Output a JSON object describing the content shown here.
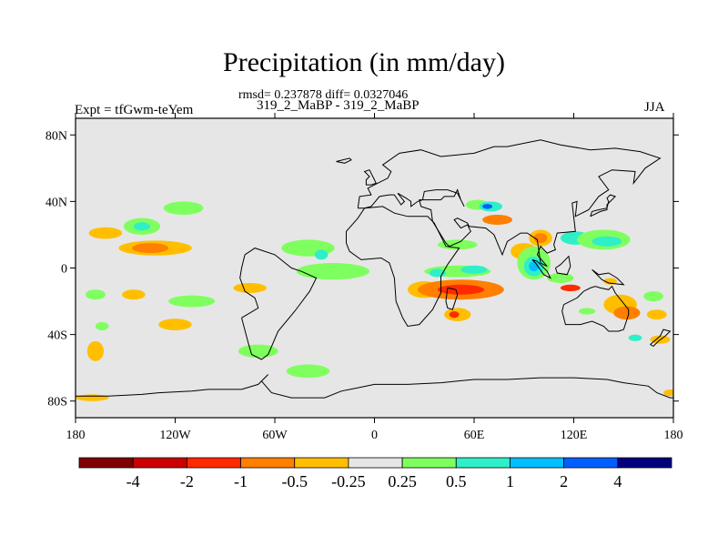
{
  "title": "Precipitation (in mm/day)",
  "stats_line": "rmsd= 0.237878 diff= 0.0327046",
  "subtitle": "319_2_MaBP - 319_2_MaBP",
  "experiment_label": "Expt = tfGwm-teYem",
  "season_label": "JJA",
  "map": {
    "projection": "cylindrical equidistant",
    "lon_range": [
      -180,
      180
    ],
    "lat_range": [
      -90,
      90
    ],
    "background_color": "#e6e6e6",
    "lat_ticks": [
      {
        "value": 80,
        "label": "80N"
      },
      {
        "value": 40,
        "label": "40N"
      },
      {
        "value": 0,
        "label": "0"
      },
      {
        "value": -40,
        "label": "40S"
      },
      {
        "value": -80,
        "label": "80S"
      }
    ],
    "lon_ticks": [
      {
        "value": -180,
        "label": "180"
      },
      {
        "value": -120,
        "label": "120W"
      },
      {
        "value": -60,
        "label": "60W"
      },
      {
        "value": 0,
        "label": "0"
      },
      {
        "value": 60,
        "label": "60E"
      },
      {
        "value": 120,
        "label": "120E"
      },
      {
        "value": 180,
        "label": "180"
      }
    ]
  },
  "colorbar": {
    "colors": [
      "#7f0000",
      "#cc0000",
      "#ff2a00",
      "#ff7f00",
      "#ffbf00",
      "#e6e6e6",
      "#7fff5f",
      "#2fefc8",
      "#00bfff",
      "#005fff",
      "#00007f"
    ],
    "labels": [
      "-4",
      "-2",
      "-1",
      "-0.5",
      "-0.25",
      "0.25",
      "0.5",
      "1",
      "2",
      "4"
    ]
  },
  "anomaly_patches": [
    {
      "lon": -162,
      "lat": 21,
      "rx": 10,
      "ry": 3.5,
      "color": "#ffbf00"
    },
    {
      "lon": -140,
      "lat": 25,
      "rx": 11,
      "ry": 5,
      "color": "#7fff5f"
    },
    {
      "lon": -140,
      "lat": 25,
      "rx": 5,
      "ry": 2.5,
      "color": "#2fefc8"
    },
    {
      "lon": -132,
      "lat": 12,
      "rx": 22,
      "ry": 4.5,
      "color": "#ffbf00"
    },
    {
      "lon": -135,
      "lat": 12,
      "rx": 11,
      "ry": 3,
      "color": "#ff7f00"
    },
    {
      "lon": -115,
      "lat": 36,
      "rx": 12,
      "ry": 4,
      "color": "#7fff5f"
    },
    {
      "lon": -168,
      "lat": -16,
      "rx": 6,
      "ry": 3,
      "color": "#7fff5f"
    },
    {
      "lon": -145,
      "lat": -16,
      "rx": 7,
      "ry": 3,
      "color": "#ffbf00"
    },
    {
      "lon": -110,
      "lat": -20,
      "rx": 14,
      "ry": 3.5,
      "color": "#7fff5f"
    },
    {
      "lon": -75,
      "lat": -12,
      "rx": 10,
      "ry": 3,
      "color": "#ffbf00"
    },
    {
      "lon": -120,
      "lat": -34,
      "rx": 10,
      "ry": 3.5,
      "color": "#ffbf00"
    },
    {
      "lon": -168,
      "lat": -50,
      "rx": 5,
      "ry": 6,
      "color": "#ffbf00"
    },
    {
      "lon": -164,
      "lat": -35,
      "rx": 4,
      "ry": 2.5,
      "color": "#7fff5f"
    },
    {
      "lon": -70,
      "lat": -50,
      "rx": 12,
      "ry": 4,
      "color": "#7fff5f"
    },
    {
      "lon": -40,
      "lat": -62,
      "rx": 13,
      "ry": 4,
      "color": "#7fff5f"
    },
    {
      "lon": -170,
      "lat": -78,
      "rx": 10,
      "ry": 2,
      "color": "#ffbf00"
    },
    {
      "lon": -40,
      "lat": 12,
      "rx": 16,
      "ry": 5,
      "color": "#7fff5f"
    },
    {
      "lon": -32,
      "lat": 8,
      "rx": 4,
      "ry": 3,
      "color": "#2fefc8"
    },
    {
      "lon": -25,
      "lat": -2,
      "rx": 22,
      "ry": 5,
      "color": "#7fff5f"
    },
    {
      "lon": 30,
      "lat": -13,
      "rx": 10,
      "ry": 5,
      "color": "#ffbf00"
    },
    {
      "lon": 52,
      "lat": -13,
      "rx": 26,
      "ry": 6,
      "color": "#ff7f00"
    },
    {
      "lon": 52,
      "lat": -13,
      "rx": 14,
      "ry": 3,
      "color": "#ff2a00"
    },
    {
      "lon": 50,
      "lat": -2,
      "rx": 20,
      "ry": 3.5,
      "color": "#7fff5f"
    },
    {
      "lon": 38,
      "lat": -3,
      "rx": 5,
      "ry": 2.5,
      "color": "#2fefc8"
    },
    {
      "lon": 60,
      "lat": -1,
      "rx": 8,
      "ry": 2.5,
      "color": "#2fefc8"
    },
    {
      "lon": 50,
      "lat": -28,
      "rx": 8,
      "ry": 4,
      "color": "#ffbf00"
    },
    {
      "lon": 48,
      "lat": -28,
      "rx": 3,
      "ry": 2,
      "color": "#ff2a00"
    },
    {
      "lon": 62,
      "lat": 38,
      "rx": 7,
      "ry": 3,
      "color": "#7fff5f"
    },
    {
      "lon": 70,
      "lat": 37,
      "rx": 7,
      "ry": 3,
      "color": "#2fefc8"
    },
    {
      "lon": 68,
      "lat": 37,
      "rx": 3,
      "ry": 1.5,
      "color": "#005fff"
    },
    {
      "lon": 74,
      "lat": 29,
      "rx": 9,
      "ry": 3,
      "color": "#ff7f00"
    },
    {
      "lon": 50,
      "lat": 14,
      "rx": 12,
      "ry": 3,
      "color": "#7fff5f"
    },
    {
      "lon": 100,
      "lat": 18,
      "rx": 7,
      "ry": 5,
      "color": "#ffbf00"
    },
    {
      "lon": 100,
      "lat": 18,
      "rx": 4,
      "ry": 3,
      "color": "#ff7f00"
    },
    {
      "lon": 90,
      "lat": 10,
      "rx": 8,
      "ry": 5,
      "color": "#ffbf00"
    },
    {
      "lon": 96,
      "lat": 3,
      "rx": 10,
      "ry": 10,
      "color": "#7fff5f"
    },
    {
      "lon": 96,
      "lat": 1,
      "rx": 6,
      "ry": 6,
      "color": "#2fefc8"
    },
    {
      "lon": 96,
      "lat": 1,
      "rx": 3,
      "ry": 3,
      "color": "#00bfff"
    },
    {
      "lon": 121,
      "lat": 18,
      "rx": 9,
      "ry": 4,
      "color": "#2fefc8"
    },
    {
      "lon": 138,
      "lat": 17,
      "rx": 16,
      "ry": 6,
      "color": "#7fff5f"
    },
    {
      "lon": 140,
      "lat": 16,
      "rx": 9,
      "ry": 3,
      "color": "#2fefc8"
    },
    {
      "lon": 118,
      "lat": -12,
      "rx": 6,
      "ry": 2,
      "color": "#ff2a00"
    },
    {
      "lon": 112,
      "lat": -6,
      "rx": 8,
      "ry": 3,
      "color": "#7fff5f"
    },
    {
      "lon": 142,
      "lat": -8,
      "rx": 4,
      "ry": 2,
      "color": "#ffbf00"
    },
    {
      "lon": 148,
      "lat": -22,
      "rx": 10,
      "ry": 6,
      "color": "#ffbf00"
    },
    {
      "lon": 152,
      "lat": -27,
      "rx": 8,
      "ry": 4,
      "color": "#ff7f00"
    },
    {
      "lon": 170,
      "lat": -28,
      "rx": 6,
      "ry": 3,
      "color": "#ffbf00"
    },
    {
      "lon": 168,
      "lat": -17,
      "rx": 6,
      "ry": 3,
      "color": "#7fff5f"
    },
    {
      "lon": 172,
      "lat": -43,
      "rx": 6,
      "ry": 2.5,
      "color": "#ffbf00"
    },
    {
      "lon": 157,
      "lat": -42,
      "rx": 4,
      "ry": 2,
      "color": "#2fefc8"
    },
    {
      "lon": 128,
      "lat": -26,
      "rx": 5,
      "ry": 2,
      "color": "#7fff5f"
    },
    {
      "lon": 178,
      "lat": -75,
      "rx": 4,
      "ry": 2,
      "color": "#ffbf00"
    }
  ],
  "coastlines": [
    [
      [
        -180,
        -77
      ],
      [
        -160,
        -77
      ],
      [
        -140,
        -76
      ],
      [
        -130,
        -75
      ],
      [
        -110,
        -74
      ],
      [
        -100,
        -73
      ],
      [
        -80,
        -73
      ],
      [
        -70,
        -70
      ],
      [
        -64,
        -64
      ],
      [
        -68,
        -68
      ],
      [
        -62,
        -75
      ],
      [
        -50,
        -78
      ],
      [
        -30,
        -78
      ],
      [
        -20,
        -74
      ],
      [
        -10,
        -72
      ],
      [
        0,
        -70
      ],
      [
        20,
        -70
      ],
      [
        40,
        -69
      ],
      [
        60,
        -67
      ],
      [
        80,
        -67
      ],
      [
        100,
        -66
      ],
      [
        120,
        -66
      ],
      [
        140,
        -67
      ],
      [
        150,
        -69
      ],
      [
        165,
        -71
      ],
      [
        170,
        -75
      ],
      [
        178,
        -78
      ],
      [
        180,
        -78
      ]
    ],
    [
      [
        -80,
        -30
      ],
      [
        -76,
        -45
      ],
      [
        -74,
        -52
      ],
      [
        -68,
        -55
      ],
      [
        -64,
        -52
      ],
      [
        -58,
        -38
      ],
      [
        -48,
        -26
      ],
      [
        -39,
        -14
      ],
      [
        -35,
        -6
      ],
      [
        -44,
        -2
      ],
      [
        -50,
        0
      ],
      [
        -60,
        8
      ],
      [
        -72,
        12
      ],
      [
        -78,
        8
      ],
      [
        -80,
        0
      ],
      [
        -81,
        -6
      ],
      [
        -78,
        -14
      ],
      [
        -72,
        -18
      ],
      [
        -70,
        -24
      ],
      [
        -80,
        -30
      ]
    ],
    [
      [
        -17,
        15
      ],
      [
        -17,
        22
      ],
      [
        -10,
        30
      ],
      [
        -6,
        36
      ],
      [
        5,
        37
      ],
      [
        12,
        33
      ],
      [
        20,
        31
      ],
      [
        32,
        31
      ],
      [
        36,
        27
      ],
      [
        43,
        13
      ],
      [
        51,
        12
      ],
      [
        44,
        2
      ],
      [
        40,
        -5
      ],
      [
        40,
        -15
      ],
      [
        35,
        -25
      ],
      [
        27,
        -34
      ],
      [
        20,
        -35
      ],
      [
        17,
        -30
      ],
      [
        13,
        -20
      ],
      [
        12,
        -6
      ],
      [
        9,
        3
      ],
      [
        4,
        6
      ],
      [
        -8,
        5
      ],
      [
        -15,
        10
      ],
      [
        -17,
        15
      ]
    ],
    [
      [
        -10,
        36
      ],
      [
        -9,
        43
      ],
      [
        -2,
        44
      ],
      [
        -4,
        48
      ],
      [
        2,
        51
      ],
      [
        8,
        54
      ],
      [
        10,
        58
      ],
      [
        5,
        62
      ],
      [
        15,
        69
      ],
      [
        28,
        71
      ],
      [
        40,
        67
      ],
      [
        60,
        69
      ],
      [
        72,
        73
      ],
      [
        80,
        73
      ],
      [
        100,
        77
      ],
      [
        112,
        74
      ],
      [
        130,
        71
      ],
      [
        145,
        72
      ],
      [
        160,
        70
      ],
      [
        172,
        66
      ],
      [
        163,
        60
      ],
      [
        156,
        51
      ],
      [
        157,
        58
      ],
      [
        143,
        59
      ],
      [
        135,
        55
      ],
      [
        141,
        47
      ],
      [
        135,
        43
      ],
      [
        129,
        35
      ],
      [
        121,
        31
      ],
      [
        122,
        40
      ],
      [
        119,
        39
      ],
      [
        121,
        22
      ],
      [
        110,
        21
      ],
      [
        108,
        14
      ],
      [
        109,
        11
      ],
      [
        104,
        9
      ],
      [
        100,
        13
      ],
      [
        98,
        8
      ],
      [
        104,
        1
      ],
      [
        100,
        3
      ],
      [
        98,
        17
      ],
      [
        92,
        21
      ],
      [
        88,
        21
      ],
      [
        80,
        16
      ],
      [
        77,
        8
      ],
      [
        72,
        20
      ],
      [
        67,
        24
      ],
      [
        57,
        25
      ],
      [
        56,
        27
      ],
      [
        50,
        30
      ],
      [
        48,
        29
      ],
      [
        52,
        24
      ],
      [
        56,
        26
      ],
      [
        58,
        22
      ],
      [
        52,
        16
      ],
      [
        45,
        13
      ],
      [
        43,
        15
      ],
      [
        35,
        28
      ],
      [
        34,
        35
      ],
      [
        28,
        37
      ],
      [
        27,
        41
      ],
      [
        29,
        41
      ],
      [
        40,
        41
      ],
      [
        42,
        43
      ],
      [
        48,
        43
      ],
      [
        50,
        47
      ],
      [
        52,
        41
      ],
      [
        54,
        37
      ],
      [
        50,
        45
      ],
      [
        44,
        47
      ],
      [
        37,
        47
      ],
      [
        30,
        46
      ],
      [
        29,
        41
      ],
      [
        26,
        40
      ],
      [
        22,
        37
      ],
      [
        22,
        40
      ],
      [
        19,
        42
      ],
      [
        14,
        45
      ],
      [
        18,
        40
      ],
      [
        16,
        38
      ],
      [
        12,
        44
      ],
      [
        9,
        44
      ],
      [
        3,
        43
      ],
      [
        -2,
        37
      ],
      [
        -6,
        36
      ],
      [
        -10,
        36
      ]
    ],
    [
      [
        114,
        -22
      ],
      [
        113,
        -26
      ],
      [
        115,
        -34
      ],
      [
        124,
        -34
      ],
      [
        131,
        -32
      ],
      [
        138,
        -35
      ],
      [
        141,
        -38
      ],
      [
        147,
        -38
      ],
      [
        150,
        -37
      ],
      [
        153,
        -28
      ],
      [
        153,
        -25
      ],
      [
        145,
        -15
      ],
      [
        143,
        -11
      ],
      [
        141,
        -13
      ],
      [
        136,
        -12
      ],
      [
        133,
        -11
      ],
      [
        130,
        -12
      ],
      [
        126,
        -14
      ],
      [
        122,
        -18
      ],
      [
        114,
        -22
      ]
    ],
    [
      [
        95,
        5
      ],
      [
        98,
        4
      ],
      [
        104,
        -2
      ],
      [
        106,
        -6
      ],
      [
        102,
        -4
      ],
      [
        97,
        3
      ],
      [
        95,
        5
      ]
    ],
    [
      [
        109,
        0
      ],
      [
        110,
        -3
      ],
      [
        116,
        -4
      ],
      [
        118,
        1
      ],
      [
        117,
        7
      ],
      [
        112,
        2
      ],
      [
        109,
        0
      ]
    ],
    [
      [
        131,
        -1
      ],
      [
        135,
        -4
      ],
      [
        141,
        -3
      ],
      [
        146,
        -6
      ],
      [
        150,
        -10
      ],
      [
        141,
        -9
      ],
      [
        137,
        -7
      ],
      [
        132,
        -2
      ],
      [
        131,
        -1
      ]
    ],
    [
      [
        130,
        31
      ],
      [
        131,
        34
      ],
      [
        135,
        35
      ],
      [
        140,
        36
      ],
      [
        141,
        40
      ],
      [
        140,
        42
      ],
      [
        142,
        44
      ],
      [
        145,
        43
      ],
      [
        140,
        38
      ],
      [
        140,
        35
      ],
      [
        136,
        34
      ],
      [
        130,
        31
      ]
    ],
    [
      [
        -2,
        50
      ],
      [
        -5,
        50
      ],
      [
        -5,
        53
      ],
      [
        -3,
        55
      ],
      [
        -6,
        58
      ],
      [
        -3,
        59
      ],
      [
        0,
        53
      ],
      [
        1,
        51
      ],
      [
        -2,
        50
      ]
    ],
    [
      [
        44,
        -12
      ],
      [
        49,
        -13
      ],
      [
        50,
        -16
      ],
      [
        47,
        -25
      ],
      [
        44,
        -24
      ],
      [
        43,
        -20
      ],
      [
        44,
        -12
      ]
    ],
    [
      [
        166,
        -46
      ],
      [
        172,
        -41
      ],
      [
        174,
        -37
      ],
      [
        178,
        -38
      ],
      [
        175,
        -41
      ],
      [
        171,
        -44
      ],
      [
        168,
        -47
      ],
      [
        166,
        -46
      ]
    ],
    [
      [
        -23,
        64
      ],
      [
        -15,
        66
      ],
      [
        -14,
        65
      ],
      [
        -18,
        63
      ],
      [
        -23,
        64
      ]
    ]
  ]
}
